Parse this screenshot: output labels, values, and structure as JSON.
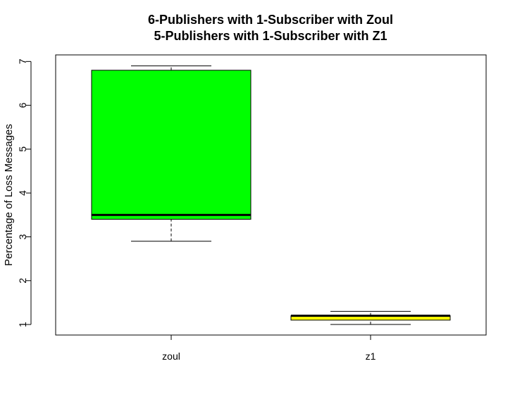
{
  "chart_data": {
    "type": "boxplot",
    "title_lines": [
      "6-Publishers with 1-Subscriber with Zoul",
      "5-Publishers with 1-Subscriber with Z1"
    ],
    "xlabel": "",
    "ylabel": "Percentage of Loss Messages",
    "ylim": [
      0.76,
      7.15
    ],
    "yticks": [
      1,
      2,
      3,
      4,
      5,
      6,
      7
    ],
    "grid": false,
    "categories": [
      "zoul",
      "z1"
    ],
    "boxes": [
      {
        "category": "zoul",
        "color": "#00ff00",
        "whisker_low": 2.9,
        "q1": 3.4,
        "median": 3.5,
        "q3": 6.8,
        "whisker_high": 6.9
      },
      {
        "category": "z1",
        "color": "#ffff00",
        "whisker_low": 1.0,
        "q1": 1.1,
        "median": 1.2,
        "q3": 1.2,
        "whisker_high": 1.3
      }
    ]
  }
}
